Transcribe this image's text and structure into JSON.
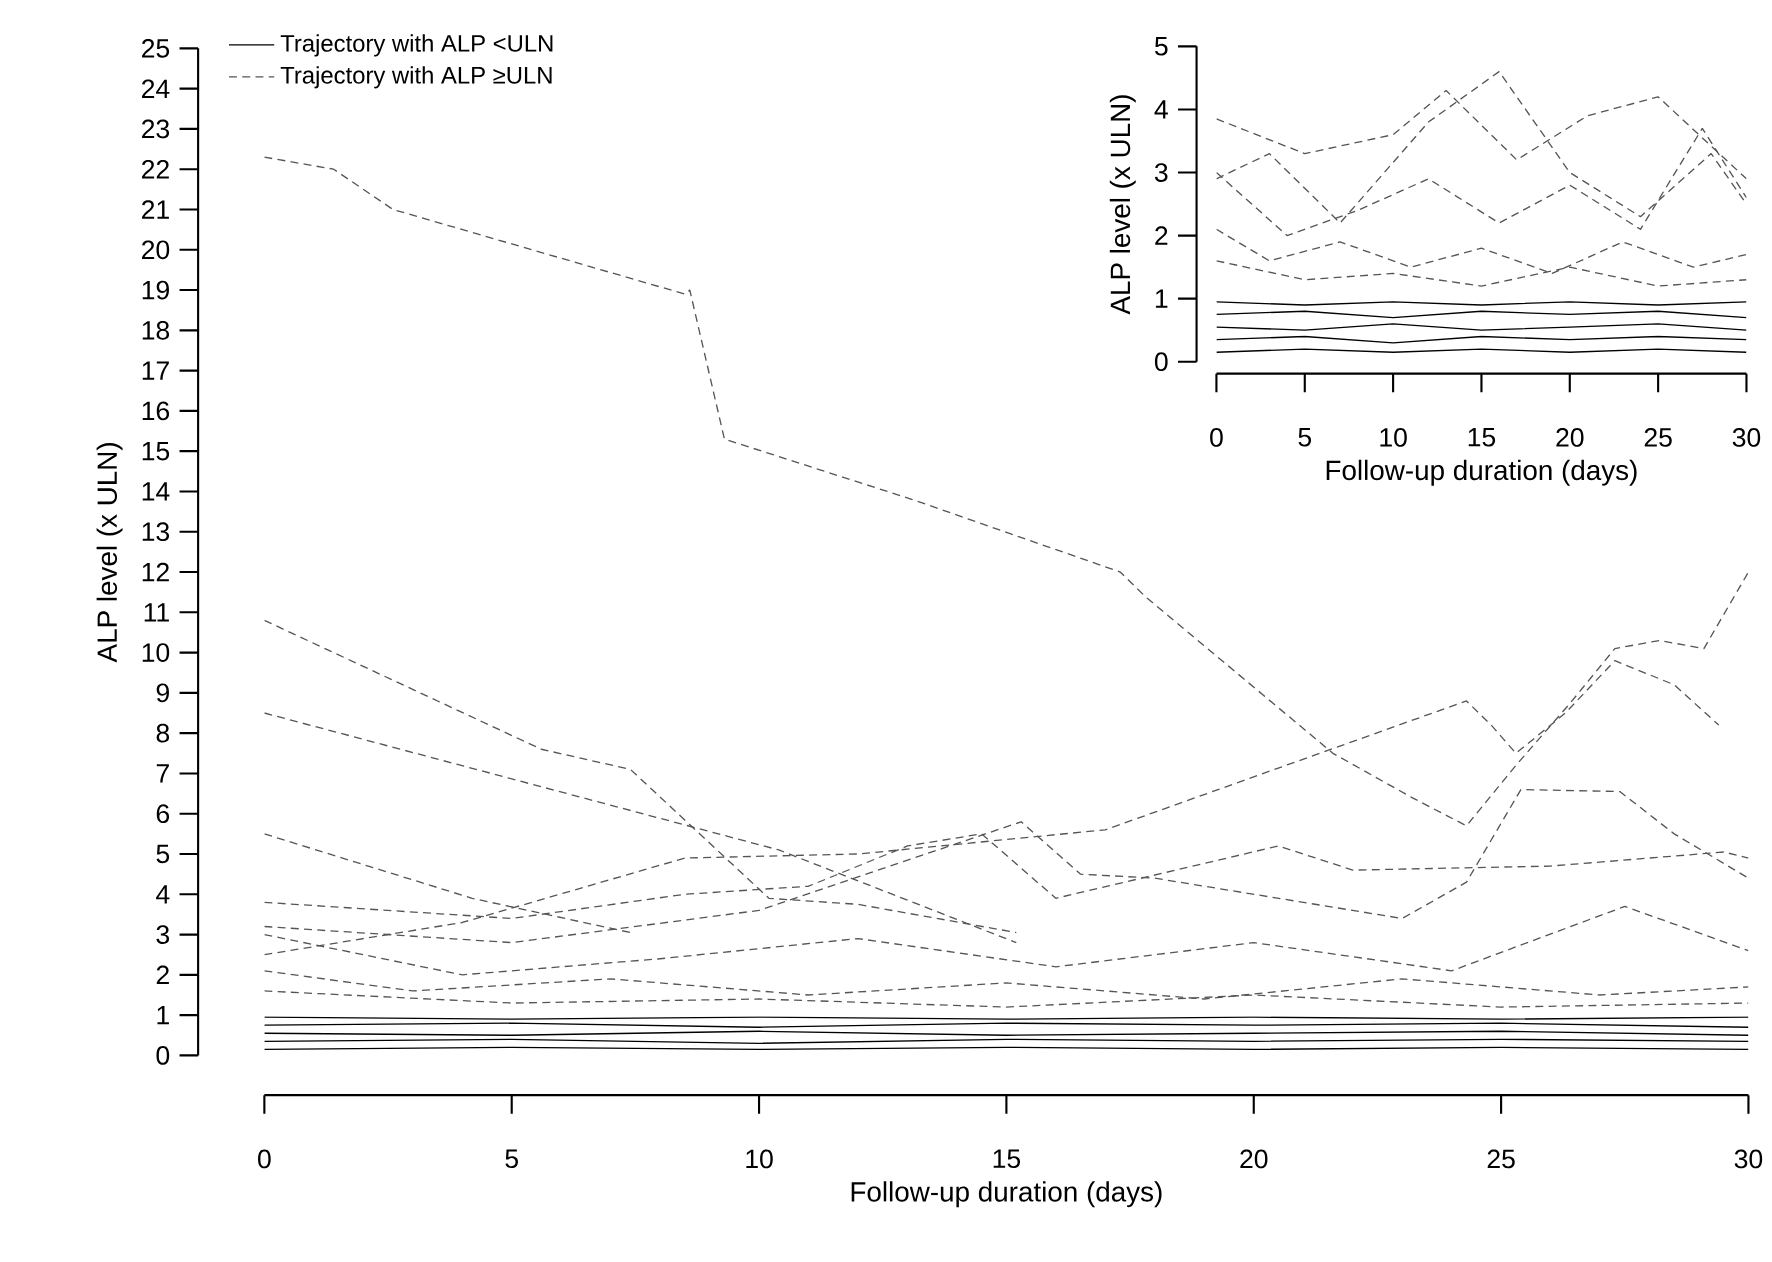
{
  "chart_data": [
    {
      "type": "line",
      "xlabel": "Follow-up duration (days)",
      "ylabel": "ALP level (x ULN)",
      "xlim": [
        0,
        30
      ],
      "ylim": [
        0,
        25
      ],
      "xticks": [
        0,
        5,
        10,
        15,
        20,
        25,
        30
      ],
      "yticks": [
        0,
        1,
        2,
        3,
        4,
        5,
        6,
        7,
        8,
        9,
        10,
        11,
        12,
        13,
        14,
        15,
        16,
        17,
        18,
        19,
        20,
        21,
        22,
        23,
        24,
        25
      ],
      "legend": "top left",
      "series": [
        {
          "name": "Trajectory with ALP <ULN",
          "color": "#000000",
          "line_style": "solid",
          "x": [
            0,
            5,
            10,
            15,
            20,
            25,
            30
          ],
          "values": [
            0.95,
            0.9,
            0.95,
            0.9,
            0.95,
            0.9,
            0.95
          ]
        },
        {
          "name": "Trajectory with ALP ≥ULN",
          "color": "#555555",
          "line_style": "dashed",
          "x": [
            0,
            1.4,
            2.6,
            8.5,
            8.6,
            9.3,
            13.1,
            17.3,
            17.8,
            21.6,
            23.2,
            24.3,
            25.3,
            26.4,
            27.3,
            28.2,
            29.1,
            30
          ],
          "values": [
            22.3,
            22.0,
            21.0,
            18.9,
            19.0,
            15.3,
            13.8,
            12.0,
            11.4,
            7.5,
            6.4,
            5.7,
            7.2,
            8.75,
            10.1,
            10.3,
            10.1,
            12.0
          ]
        },
        {
          "color": "#555555",
          "line_style": "dashed",
          "x": [
            0,
            5.6,
            7.4,
            10.2,
            12,
            15.2
          ],
          "values": [
            10.8,
            7.6,
            7.1,
            3.9,
            3.75,
            3.05
          ]
        },
        {
          "color": "#555555",
          "line_style": "dashed",
          "x": [
            0,
            10.4,
            15.2
          ],
          "values": [
            8.5,
            5.1,
            2.8
          ]
        },
        {
          "color": "#555555",
          "line_style": "dashed",
          "x": [
            0,
            4.2,
            7.4
          ],
          "values": [
            5.5,
            3.9,
            3.05
          ]
        },
        {
          "color": "#555555",
          "line_style": "dashed",
          "x": [
            0,
            4,
            8.5,
            12,
            17,
            24.3,
            24.8,
            25.3,
            26.3,
            27.3,
            28.5,
            29.4
          ],
          "values": [
            2.5,
            3.3,
            4.9,
            5.0,
            5.6,
            8.8,
            8.2,
            7.5,
            8.5,
            9.8,
            9.2,
            8.2
          ]
        },
        {
          "color": "#555555",
          "line_style": "dashed",
          "x": [
            0,
            5,
            10,
            15.3,
            16.5,
            18,
            23,
            24.3,
            25.4,
            27.4,
            28.5,
            30
          ],
          "values": [
            3.2,
            2.8,
            3.6,
            5.8,
            4.5,
            4.4,
            3.4,
            4.3,
            6.6,
            6.55,
            5.5,
            4.4
          ]
        },
        {
          "color": "#555555",
          "line_style": "dashed",
          "x": [
            0,
            5,
            8.5,
            11,
            13,
            14.5,
            16,
            20.5,
            22,
            26,
            29.5,
            30
          ],
          "values": [
            3.8,
            3.4,
            4.0,
            4.2,
            5.2,
            5.5,
            3.9,
            5.2,
            4.6,
            4.7,
            5.05,
            4.9
          ]
        },
        {
          "color": "#555555",
          "line_style": "dashed",
          "x": [
            0,
            4,
            8,
            12,
            16,
            20,
            24,
            27.5,
            30
          ],
          "values": [
            3.0,
            2.0,
            2.4,
            2.9,
            2.2,
            2.8,
            2.1,
            3.7,
            2.6
          ]
        },
        {
          "color": "#555555",
          "line_style": "dashed",
          "x": [
            0,
            3,
            7,
            11,
            15,
            19,
            23,
            27,
            30
          ],
          "values": [
            2.1,
            1.6,
            1.9,
            1.5,
            1.8,
            1.4,
            1.9,
            1.5,
            1.7
          ]
        },
        {
          "color": "#555555",
          "line_style": "dashed",
          "x": [
            0,
            5,
            10,
            15,
            20,
            25,
            30
          ],
          "values": [
            1.6,
            1.3,
            1.4,
            1.2,
            1.5,
            1.2,
            1.3
          ]
        },
        {
          "color": "#000000",
          "line_style": "solid",
          "x": [
            0,
            5,
            10,
            15,
            20,
            25,
            30
          ],
          "values": [
            0.75,
            0.8,
            0.7,
            0.8,
            0.75,
            0.8,
            0.7
          ]
        },
        {
          "color": "#000000",
          "line_style": "solid",
          "x": [
            0,
            5,
            10,
            15,
            20,
            25,
            30
          ],
          "values": [
            0.55,
            0.5,
            0.6,
            0.5,
            0.55,
            0.6,
            0.5
          ]
        },
        {
          "color": "#000000",
          "line_style": "solid",
          "x": [
            0,
            5,
            10,
            15,
            20,
            25,
            30
          ],
          "values": [
            0.35,
            0.4,
            0.3,
            0.4,
            0.35,
            0.4,
            0.35
          ]
        },
        {
          "color": "#000000",
          "line_style": "solid",
          "x": [
            0,
            5,
            10,
            15,
            20,
            25,
            30
          ],
          "values": [
            0.15,
            0.2,
            0.15,
            0.2,
            0.15,
            0.2,
            0.15
          ]
        }
      ]
    },
    {
      "type": "line",
      "xlabel": "Follow-up duration (days)",
      "ylabel": "ALP level (x ULN)",
      "xlim": [
        0,
        30
      ],
      "ylim": [
        0,
        5
      ],
      "xticks": [
        0,
        5,
        10,
        15,
        20,
        25,
        30
      ],
      "yticks": [
        0,
        1,
        2,
        3,
        4,
        5
      ],
      "series": [
        {
          "color": "#555555",
          "line_style": "dashed",
          "x": [
            0,
            5,
            10,
            13,
            17,
            21,
            25,
            30
          ],
          "values": [
            3.85,
            3.3,
            3.6,
            4.3,
            3.2,
            3.9,
            4.2,
            2.9
          ]
        },
        {
          "color": "#555555",
          "line_style": "dashed",
          "x": [
            0,
            3,
            7,
            12,
            16,
            20,
            24,
            28,
            30
          ],
          "values": [
            2.9,
            3.3,
            2.2,
            3.8,
            4.6,
            3.0,
            2.3,
            3.3,
            2.5
          ]
        },
        {
          "color": "#555555",
          "line_style": "dashed",
          "x": [
            0,
            4,
            8,
            12,
            16,
            20,
            24,
            27.5,
            30
          ],
          "values": [
            3.0,
            2.0,
            2.4,
            2.9,
            2.2,
            2.8,
            2.1,
            3.7,
            2.6
          ]
        },
        {
          "color": "#555555",
          "line_style": "dashed",
          "x": [
            0,
            3,
            7,
            11,
            15,
            19,
            23,
            27,
            30
          ],
          "values": [
            2.1,
            1.6,
            1.9,
            1.5,
            1.8,
            1.4,
            1.9,
            1.5,
            1.7
          ]
        },
        {
          "color": "#555555",
          "line_style": "dashed",
          "x": [
            0,
            5,
            10,
            15,
            20,
            25,
            30
          ],
          "values": [
            1.6,
            1.3,
            1.4,
            1.2,
            1.5,
            1.2,
            1.3
          ]
        },
        {
          "color": "#000000",
          "line_style": "solid",
          "x": [
            0,
            5,
            10,
            15,
            20,
            25,
            30
          ],
          "values": [
            0.95,
            0.9,
            0.95,
            0.9,
            0.95,
            0.9,
            0.95
          ]
        },
        {
          "color": "#000000",
          "line_style": "solid",
          "x": [
            0,
            5,
            10,
            15,
            20,
            25,
            30
          ],
          "values": [
            0.75,
            0.8,
            0.7,
            0.8,
            0.75,
            0.8,
            0.7
          ]
        },
        {
          "color": "#000000",
          "line_style": "solid",
          "x": [
            0,
            5,
            10,
            15,
            20,
            25,
            30
          ],
          "values": [
            0.55,
            0.5,
            0.6,
            0.5,
            0.55,
            0.6,
            0.5
          ]
        },
        {
          "color": "#000000",
          "line_style": "solid",
          "x": [
            0,
            5,
            10,
            15,
            20,
            25,
            30
          ],
          "values": [
            0.35,
            0.4,
            0.3,
            0.4,
            0.35,
            0.4,
            0.35
          ]
        },
        {
          "color": "#000000",
          "line_style": "solid",
          "x": [
            0,
            5,
            10,
            15,
            20,
            25,
            30
          ],
          "values": [
            0.15,
            0.2,
            0.15,
            0.2,
            0.15,
            0.2,
            0.15
          ]
        }
      ]
    }
  ]
}
